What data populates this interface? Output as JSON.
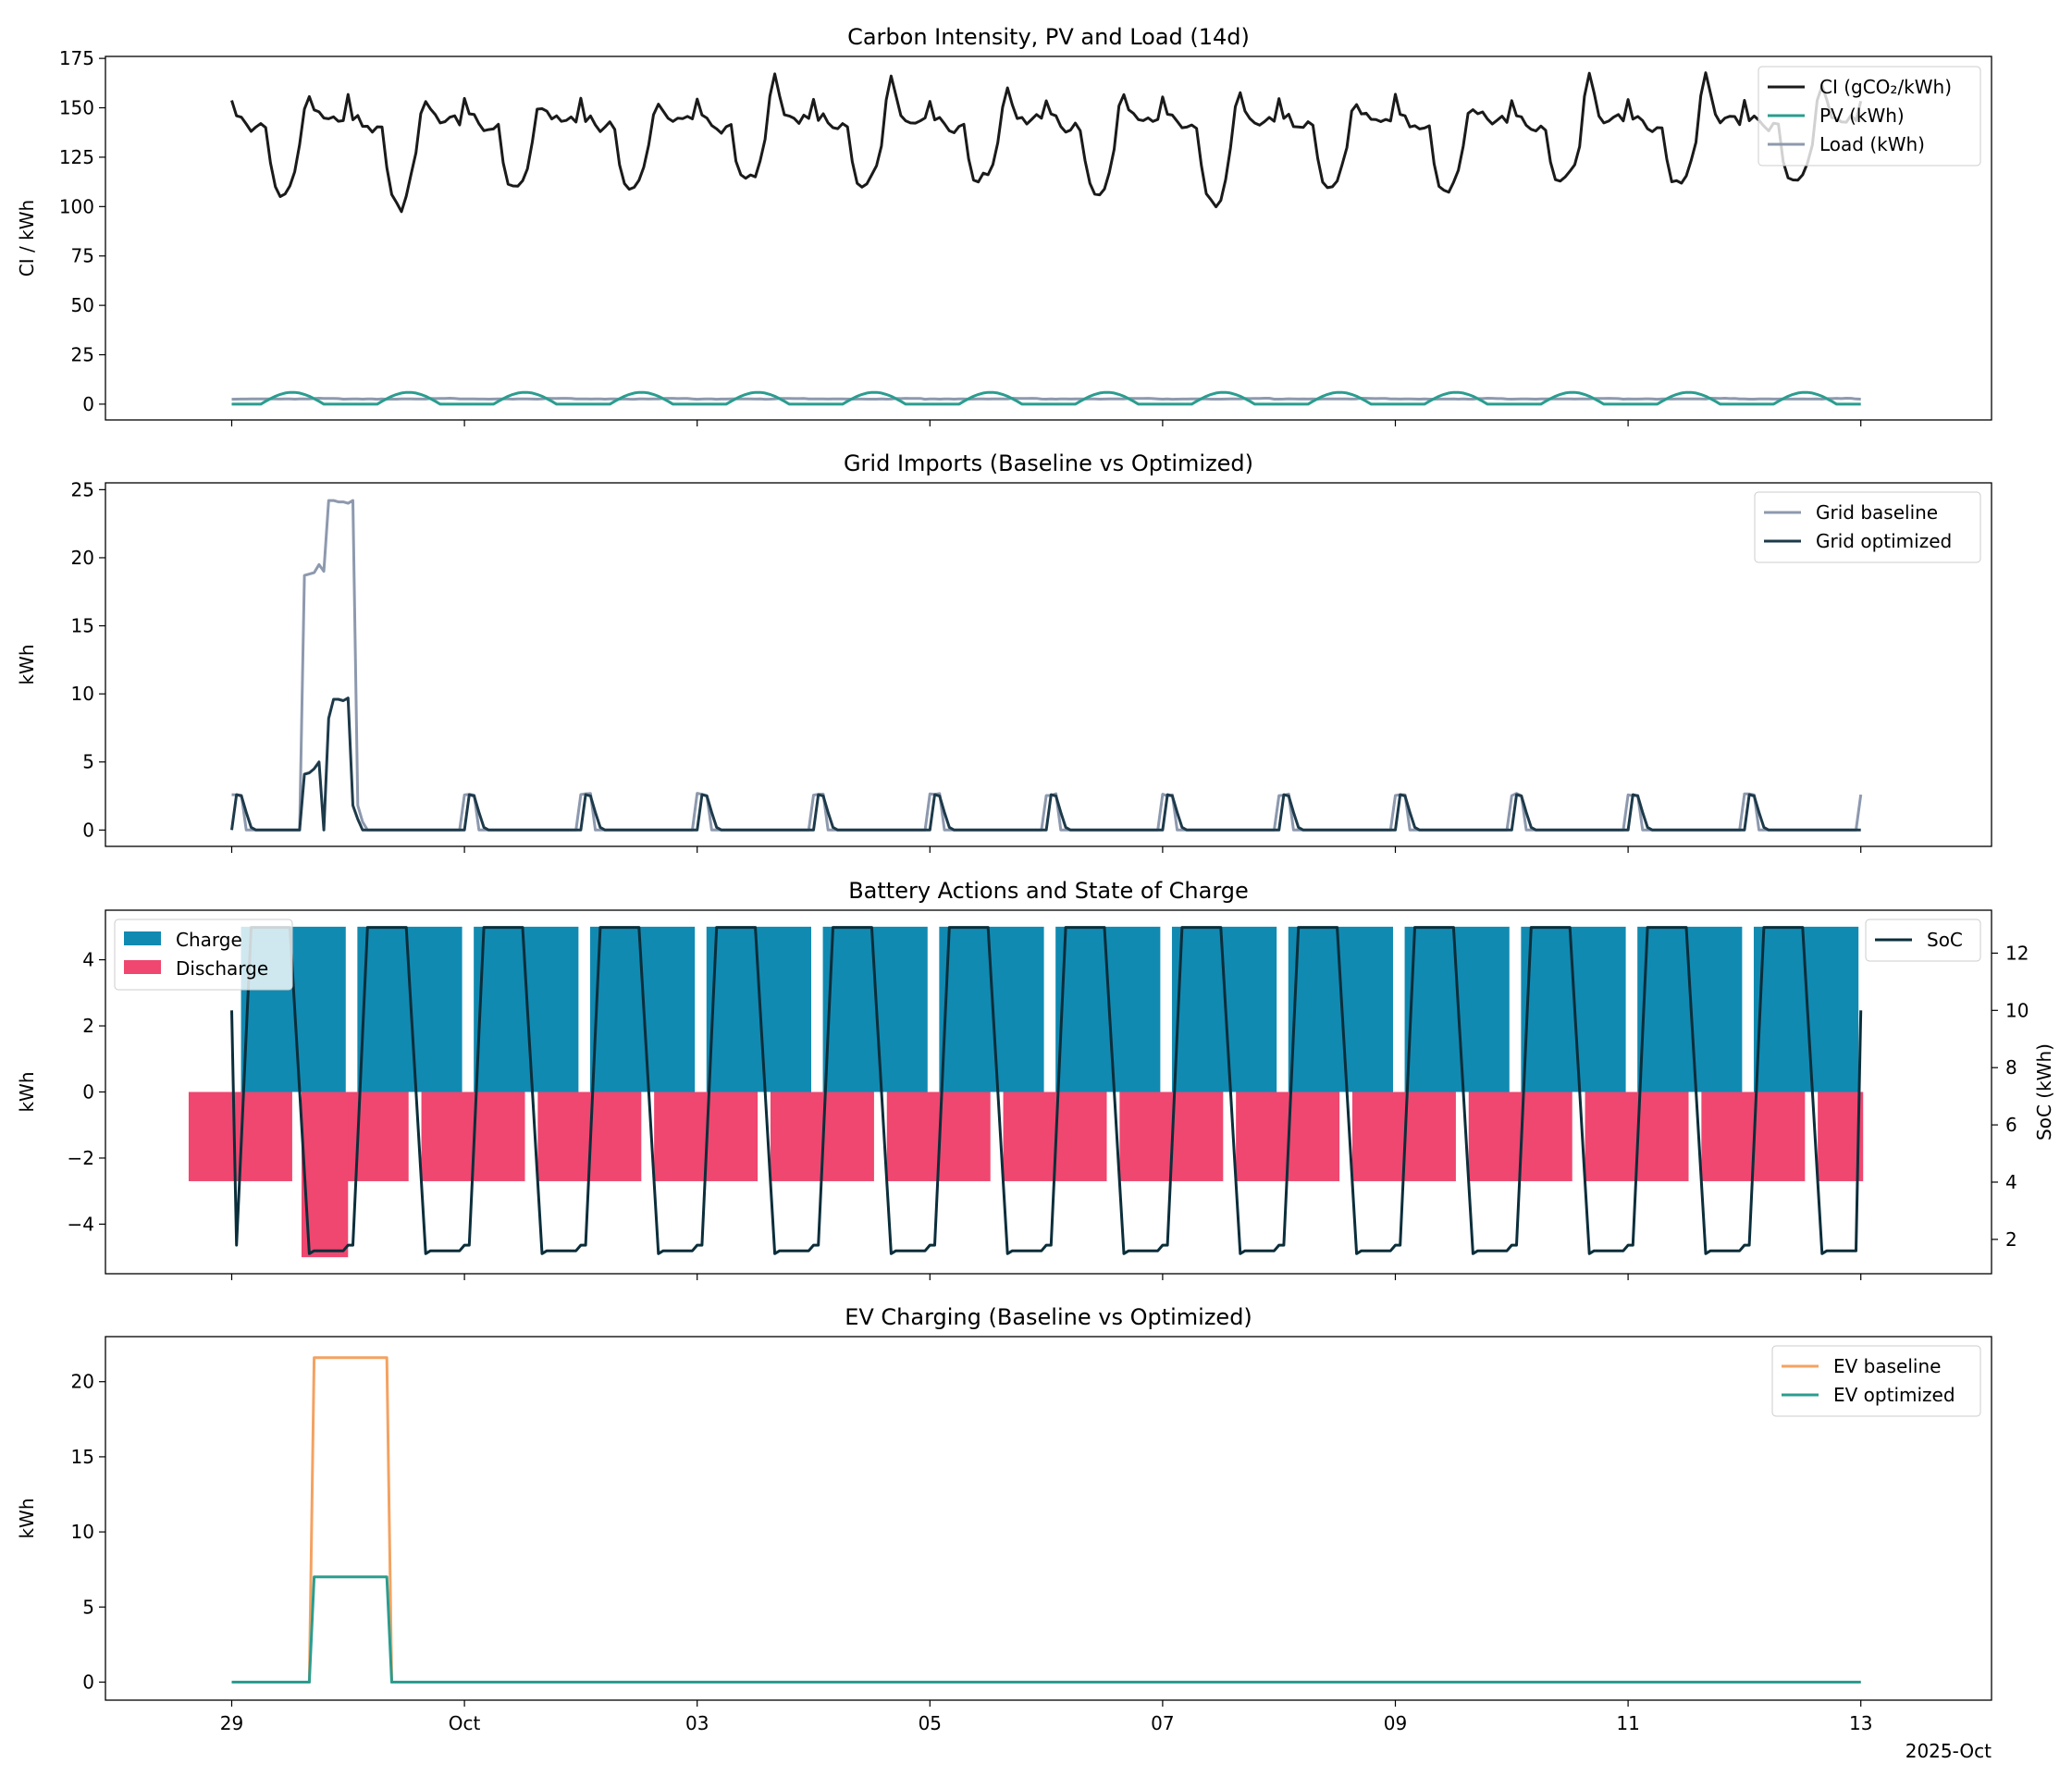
{
  "figure": {
    "date_axis_label": "2025-Oct",
    "x_ticks": [
      "29",
      "Oct",
      "03",
      "05",
      "07",
      "09",
      "11",
      "13"
    ]
  },
  "chart_data": [
    {
      "type": "line",
      "title": "Carbon Intensity, PV and Load (14d)",
      "xlabel": "",
      "ylabel": "CI / kWh",
      "x_range": [
        "2025-09-29",
        "2025-10-13"
      ],
      "ylim": [
        -8,
        176
      ],
      "y_ticks": [
        0,
        25,
        50,
        75,
        100,
        125,
        150,
        175
      ],
      "legend_position": "top-right",
      "sampling": "hourly",
      "series": [
        {
          "name": "CI (gCO₂/kWh)",
          "color": "#1a1a1a",
          "daily_profile": [
            155,
            145,
            145,
            142,
            139,
            139,
            141,
            140,
            122,
            110,
            107,
            106,
            110,
            118,
            130,
            150,
            156,
            150,
            146,
            144,
            143,
            144,
            145,
            143
          ],
          "trough_by_day": [
            106,
            99,
            110,
            109,
            115,
            112,
            115,
            106,
            99,
            110,
            109,
            115,
            113,
            115
          ],
          "peak_by_day": [
            156,
            152,
            151,
            152,
            167,
            168,
            160,
            156,
            156,
            152,
            151,
            167,
            168,
            160
          ]
        },
        {
          "name": "PV (kWh)",
          "color": "#2a9d8f",
          "description_values": "0 at night, daytime arc peaking about 6 kWh each day"
        },
        {
          "name": "Load (kWh)",
          "color": "#8d99ae",
          "description_values": "about 2.5-3 kWh, nearly flat"
        }
      ]
    },
    {
      "type": "line",
      "title": "Grid Imports (Baseline vs Optimized)",
      "xlabel": "",
      "ylabel": "kWh",
      "ylim": [
        -1.2,
        25.5
      ],
      "y_ticks": [
        0,
        5,
        10,
        15,
        20,
        25
      ],
      "legend_position": "top-right",
      "series": [
        {
          "name": "Grid baseline",
          "color": "#8d99ae",
          "spike": {
            "start": "2025-09-29T14:00",
            "end": "2025-09-30T06:00",
            "values": [
              18.7,
              18.8,
              19.5,
              24.2,
              24.1,
              24.2
            ]
          },
          "daily_hump_value": 2.6
        },
        {
          "name": "Grid optimized",
          "color": "#1d3a4a",
          "spike": {
            "start": "2025-09-29T14:00",
            "end": "2025-09-30T06:00",
            "values": [
              4.1,
              4.3,
              5.0,
              8.2,
              9.6,
              9.7
            ]
          },
          "daily_hump_value": 2.6
        }
      ]
    },
    {
      "type": "bar",
      "title": "Battery Actions and State of Charge",
      "xlabel": "",
      "ylabel": "kWh",
      "y2label": "SoC (kWh)",
      "ylim": [
        -5.5,
        5.5
      ],
      "y_ticks": [
        -4,
        -2,
        0,
        2,
        4
      ],
      "y2lim": [
        0.8,
        13.5
      ],
      "y2_ticks": [
        2,
        4,
        6,
        8,
        10,
        12
      ],
      "legend_position": "top-left",
      "legend2_position": "top-right",
      "series": [
        {
          "name": "Charge",
          "color": "#118ab2",
          "daily_value": 5.0
        },
        {
          "name": "Discharge",
          "color": "#ef476f",
          "daily_value": -2.7,
          "first_day_peak": -5.0
        },
        {
          "name": "SoC",
          "color": "#0b2e3b",
          "min": 1.3,
          "max": 12.9
        }
      ]
    },
    {
      "type": "line",
      "title": "EV Charging (Baseline vs Optimized)",
      "xlabel": "",
      "ylabel": "kWh",
      "ylim": [
        -1.2,
        23
      ],
      "y_ticks": [
        0,
        5,
        10,
        15,
        20
      ],
      "legend_position": "top-right",
      "series": [
        {
          "name": "EV baseline",
          "color": "#f4a261",
          "session": {
            "start": "2025-09-29T17:00",
            "end": "2025-09-30T08:00",
            "value": 21.6
          }
        },
        {
          "name": "EV optimized",
          "color": "#2a9d8f",
          "session": {
            "start": "2025-09-29T17:00",
            "end": "2025-09-30T08:00",
            "value": 7.0
          }
        }
      ]
    }
  ]
}
